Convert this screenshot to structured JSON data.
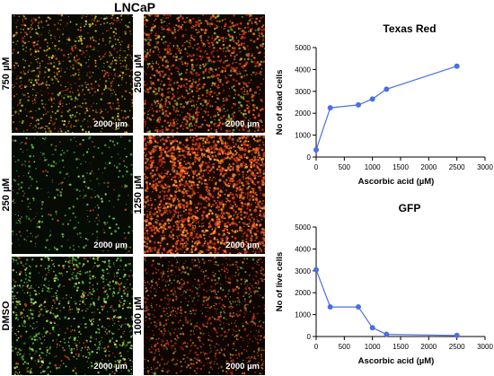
{
  "figure": {
    "cell_line": "LNCaP",
    "scale_bar": "2000 µm"
  },
  "panels": [
    {
      "label": "750 µM",
      "style": "mixed-dense-yellow"
    },
    {
      "label": "2500 µM",
      "style": "red-dense"
    },
    {
      "label": "250 µM",
      "style": "green-sparse"
    },
    {
      "label": "1250 µM",
      "style": "orange-very-dense"
    },
    {
      "label": "DMSO",
      "style": "green-dense"
    },
    {
      "label": "1000 µM",
      "style": "red-medium"
    }
  ],
  "chart_data": [
    {
      "type": "line",
      "title": "Texas Red",
      "xlabel": "Ascorbic acid (µM)",
      "ylabel": "No of dead cells",
      "x": [
        0,
        250,
        750,
        1000,
        1250,
        2500
      ],
      "y": [
        330,
        2250,
        2380,
        2650,
        3100,
        4150
      ],
      "xlim": [
        0,
        3000
      ],
      "ylim": [
        0,
        5000
      ],
      "xticks": [
        "0",
        "500",
        "1000",
        "1500",
        "2000",
        "2500",
        "3000"
      ],
      "yticks": [
        "0",
        "1000",
        "2000",
        "3000",
        "4000",
        "5000"
      ],
      "color": "#4a6fe3"
    },
    {
      "type": "line",
      "title": "GFP",
      "xlabel": "Ascorbic acid (µM)",
      "ylabel": "No of live cells",
      "x": [
        0,
        250,
        750,
        1000,
        1250,
        2500
      ],
      "y": [
        3050,
        1350,
        1350,
        400,
        100,
        50
      ],
      "xlim": [
        0,
        3000
      ],
      "ylim": [
        0,
        5000
      ],
      "xticks": [
        "0",
        "500",
        "1000",
        "1500",
        "2000",
        "2500",
        "3000"
      ],
      "yticks": [
        "0",
        "1000",
        "2000",
        "3000",
        "4000",
        "5000"
      ],
      "color": "#4a6fe3"
    }
  ]
}
